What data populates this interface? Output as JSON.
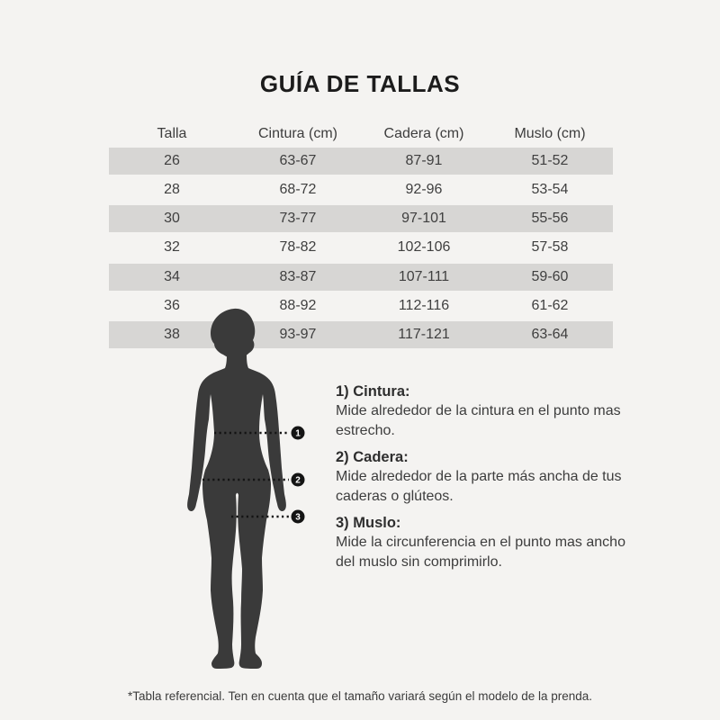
{
  "title": "GUÍA DE TALLAS",
  "table": {
    "headers": [
      "Talla",
      "Cintura (cm)",
      "Cadera (cm)",
      "Muslo (cm)"
    ],
    "rows": [
      [
        "26",
        "63-67",
        "87-91",
        "51-52"
      ],
      [
        "28",
        "68-72",
        "92-96",
        "53-54"
      ],
      [
        "30",
        "73-77",
        "97-101",
        "55-56"
      ],
      [
        "32",
        "78-82",
        "102-106",
        "57-58"
      ],
      [
        "34",
        "83-87",
        "107-111",
        "59-60"
      ],
      [
        "36",
        "88-92",
        "112-116",
        "61-62"
      ],
      [
        "38",
        "93-97",
        "117-121",
        "63-64"
      ]
    ]
  },
  "figure": {
    "markers": [
      "1",
      "2",
      "3"
    ]
  },
  "notes": [
    {
      "label": "1) Cintura:",
      "description": "Mide alrededor de la cintura en el punto mas estrecho."
    },
    {
      "label": "2) Cadera:",
      "description": "Mide alrededor de la parte más ancha de tus caderas o glúteos."
    },
    {
      "label": "3) Muslo:",
      "description": "Mide la circunferencia en el punto mas ancho del muslo sin comprimirlo."
    }
  ],
  "footnote": "*Tabla referencial. Ten en cuenta que el tamaño variará según el modelo de la prenda.",
  "colors": {
    "background": "#f4f3f1",
    "row_alt": "#d7d6d4",
    "silhouette": "#3a3a3a",
    "text": "#3d3d3d",
    "title": "#1c1c1c",
    "marker": "#141414"
  }
}
